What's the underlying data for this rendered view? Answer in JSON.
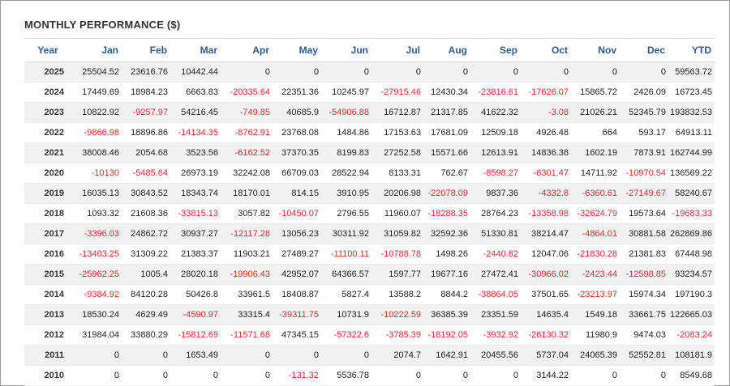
{
  "title": "MONTHLY PERFORMANCE ($)",
  "colors": {
    "header_text": "#2e5b8a",
    "negative": "#e03030",
    "alt_row": "#f2f2f2"
  },
  "columns": [
    "Year",
    "Jan",
    "Feb",
    "Mar",
    "Apr",
    "May",
    "Jun",
    "Jul",
    "Aug",
    "Sep",
    "Oct",
    "Nov",
    "Dec",
    "YTD"
  ],
  "rows": [
    [
      "2025",
      "25504.52",
      "23616.76",
      "10442.44",
      "0",
      "0",
      "0",
      "0",
      "0",
      "0",
      "0",
      "0",
      "0",
      "59563.72"
    ],
    [
      "2024",
      "17449.69",
      "18984.23",
      "6663.83",
      "-20335.64",
      "22351.36",
      "10245.97",
      "-27915.46",
      "12430.34",
      "-23816.61",
      "-17626.07",
      "15865.72",
      "2426.09",
      "16723.45"
    ],
    [
      "2023",
      "10822.92",
      "-9257.97",
      "54216.45",
      "-749.85",
      "40685.9",
      "-54906.88",
      "16712.87",
      "21317.85",
      "41622.32",
      "-3.08",
      "21026.21",
      "52345.79",
      "193832.53"
    ],
    [
      "2022",
      "-9866.98",
      "18896.86",
      "-14134.35",
      "-8762.91",
      "23768.08",
      "1484.86",
      "17153.63",
      "17681.09",
      "12509.18",
      "4926.48",
      "664",
      "593.17",
      "64913.11"
    ],
    [
      "2021",
      "38008.46",
      "2054.68",
      "3523.56",
      "-6162.52",
      "37370.35",
      "8199.83",
      "27252.58",
      "15571.66",
      "12613.91",
      "14836.38",
      "1602.19",
      "7873.91",
      "162744.99"
    ],
    [
      "2020",
      "-10130",
      "-5485.64",
      "26973.19",
      "32242.08",
      "66709.03",
      "28522.94",
      "8133.31",
      "762.67",
      "-8598.27",
      "-6301.47",
      "14711.92",
      "-10970.54",
      "136569.22"
    ],
    [
      "2019",
      "16035.13",
      "30843.52",
      "18343.74",
      "18170.01",
      "814.15",
      "3910.95",
      "20206.98",
      "-22078.09",
      "9837.36",
      "-4332.8",
      "-6360.61",
      "-27149.67",
      "58240.67"
    ],
    [
      "2018",
      "1093.32",
      "21608.36",
      "-33815.13",
      "3057.82",
      "-10450.07",
      "2796.55",
      "11960.07",
      "-18288.35",
      "28764.23",
      "-13358.98",
      "-32624.79",
      "19573.64",
      "-19683.33"
    ],
    [
      "2017",
      "-3396.03",
      "24862.72",
      "30937.27",
      "-12117.28",
      "13056.23",
      "30311.92",
      "31059.82",
      "32592.36",
      "51330.81",
      "38214.47",
      "-4864.01",
      "30881.58",
      "262869.86"
    ],
    [
      "2016",
      "-13403.25",
      "31309.22",
      "21383.37",
      "11903.21",
      "27489.27",
      "-11100.11",
      "-10788.78",
      "1498.26",
      "-2440.82",
      "12047.06",
      "-21830.28",
      "21381.83",
      "67448.98"
    ],
    [
      "2015",
      "-25962.25",
      "1005.4",
      "28020.18",
      "-19906.43",
      "42952.07",
      "64366.57",
      "1597.77",
      "19677.16",
      "27472.41",
      "-30966.02",
      "-2423.44",
      "-12598.85",
      "93234.57"
    ],
    [
      "2014",
      "-9384.92",
      "84120.28",
      "50426.8",
      "33961.5",
      "18408.87",
      "5827.4",
      "13588.2",
      "8844.2",
      "-38864.05",
      "37501.65",
      "-23213.97",
      "15974.34",
      "197190.3"
    ],
    [
      "2013",
      "18530.24",
      "4629.49",
      "-4590.97",
      "33315.4",
      "-39311.75",
      "10731.9",
      "-10222.59",
      "36385.39",
      "23351.59",
      "14635.4",
      "1549.18",
      "33661.75",
      "122665.03"
    ],
    [
      "2012",
      "31984.04",
      "33880.29",
      "-15812.69",
      "-11571.68",
      "47345.15",
      "-57322.6",
      "-3785.39",
      "-18192.05",
      "-3932.92",
      "-26130.32",
      "11980.9",
      "9474.03",
      "-2083.24"
    ],
    [
      "2011",
      "0",
      "0",
      "1653.49",
      "0",
      "0",
      "0",
      "2074.7",
      "1642.91",
      "20455.56",
      "5737.04",
      "24065.39",
      "52552.81",
      "108181.9"
    ],
    [
      "2010",
      "0",
      "0",
      "0",
      "0",
      "-131.32",
      "5536.78",
      "0",
      "0",
      "0",
      "3144.22",
      "0",
      "0",
      "8549.68"
    ]
  ]
}
